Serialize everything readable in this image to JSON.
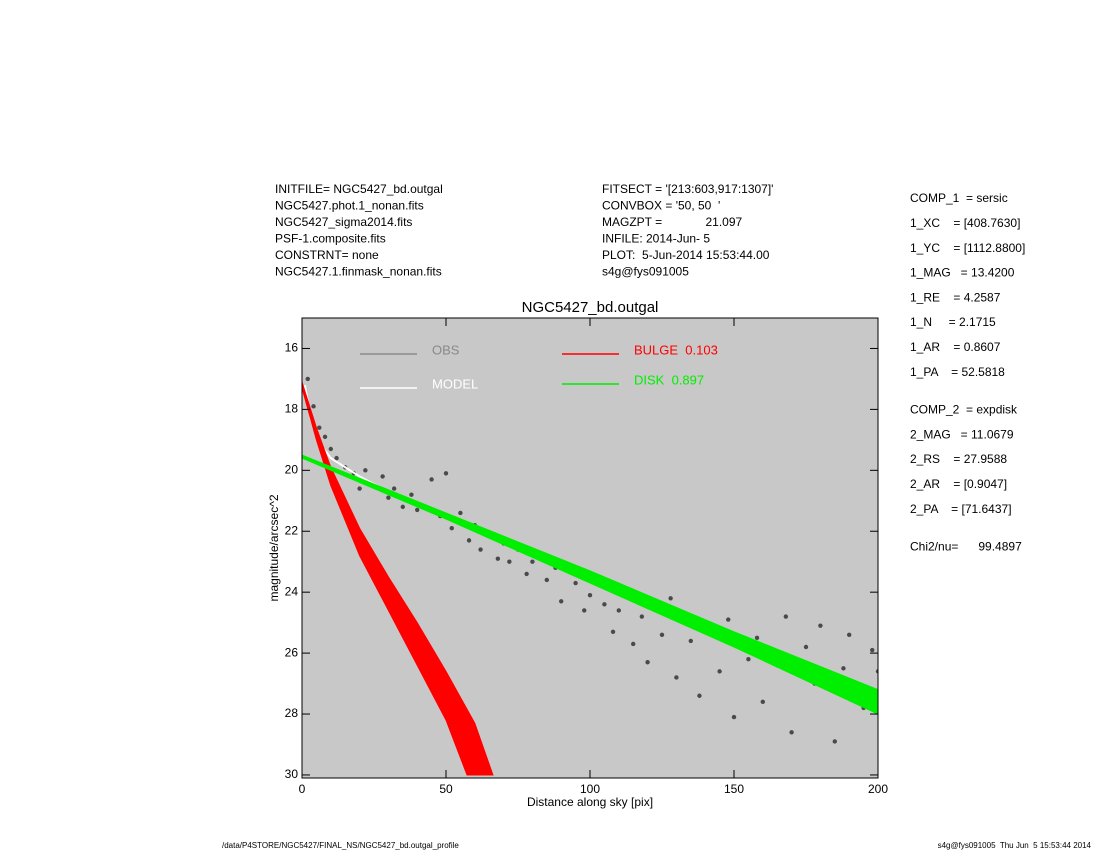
{
  "header": {
    "left": [
      "INITFILE= NGC5427_bd.outgal",
      "NGC5427.phot.1_nonan.fits",
      "NGC5427_sigma2014.fits",
      "PSF-1.composite.fits",
      "CONSTRNT= none",
      "NGC5427.1.finmask_nonan.fits"
    ],
    "middle": [
      "FITSECT = '[213:603,917:1307]'",
      "CONVBOX = '50, 50  '",
      "MAGZPT =             21.097",
      "INFILE: 2014-Jun- 5",
      "PLOT:  5-Jun-2014 15:53:44.00",
      "s4g@fys091005"
    ],
    "right": [
      "COMP_1  = sersic",
      "1_XC    = [408.7630]",
      "1_YC    = [1112.8800]",
      "1_MAG   = 13.4200",
      "1_RE    = 4.2587",
      "1_N     = 2.1715",
      "1_AR    = 0.8607",
      "1_PA    = 52.5818",
      "COMP_2  = expdisk",
      "2_MAG   = 11.0679",
      "2_RS    = 27.9588",
      "2_AR    = [0.9047]",
      "2_PA    = [71.6437]",
      "Chi2/nu=      99.4897"
    ]
  },
  "footer": {
    "left": "/data/P4STORE/NGC5427/FINAL_NS/NGC5427_bd.outgal_profile",
    "right": "s4g@fys091005  Thu Jun  5 15:53:44 2014"
  },
  "chart_data": {
    "type": "scatter",
    "title": "NGC5427_bd.outgal",
    "xlabel": "Distance along sky [pix]",
    "ylabel": "magnitude/arcsec^2",
    "xlim": [
      0,
      200
    ],
    "xticks": [
      0,
      50,
      100,
      150,
      200
    ],
    "ylim": [
      15,
      30.1
    ],
    "yticks": [
      16,
      18,
      20,
      22,
      24,
      26,
      28,
      30
    ],
    "y_inverted": true,
    "background": "#c8c8c8",
    "series": [
      {
        "name": "OBS",
        "color": "#8a8a8a",
        "point_color": "#4a4a4a",
        "style": "points",
        "x": [
          2,
          4,
          6,
          8,
          10,
          12,
          15,
          18,
          20,
          22,
          25,
          28,
          30,
          32,
          35,
          38,
          40,
          45,
          48,
          50,
          52,
          55,
          58,
          60,
          62,
          65,
          68,
          70,
          72,
          75,
          78,
          80,
          85,
          88,
          90,
          95,
          98,
          100,
          105,
          108,
          110,
          115,
          118,
          120,
          125,
          128,
          130,
          135,
          138,
          140,
          145,
          148,
          150,
          155,
          158,
          160,
          165,
          168,
          170,
          175,
          178,
          180,
          185,
          188,
          190,
          195,
          198,
          200
        ],
        "values": [
          17.0,
          17.9,
          18.6,
          18.9,
          19.3,
          19.6,
          19.9,
          20.1,
          20.6,
          20.0,
          20.5,
          20.2,
          20.9,
          20.6,
          21.2,
          20.8,
          21.3,
          20.3,
          21.5,
          20.1,
          21.9,
          21.4,
          22.3,
          21.8,
          22.6,
          22.1,
          22.9,
          22.4,
          23.0,
          22.6,
          23.4,
          23.0,
          23.6,
          23.2,
          24.3,
          23.7,
          24.6,
          24.1,
          24.4,
          25.3,
          24.6,
          25.7,
          24.8,
          26.3,
          25.4,
          24.2,
          26.8,
          25.6,
          27.4,
          25.2,
          26.6,
          24.9,
          28.1,
          26.2,
          25.5,
          27.6,
          26.4,
          24.8,
          28.6,
          25.8,
          27.0,
          25.1,
          28.9,
          26.5,
          25.4,
          27.8,
          25.9,
          26.6
        ]
      },
      {
        "name": "MODEL",
        "color": "#ffffff",
        "style": "line",
        "x": [
          1,
          3,
          6,
          10,
          15,
          20,
          30
        ],
        "values": [
          17.2,
          18.3,
          19.1,
          19.6,
          19.9,
          20.2,
          20.7
        ]
      },
      {
        "name": "BULGE  0.103",
        "color": "#ff0000",
        "style": "band",
        "x": [
          0,
          5,
          10,
          20,
          30,
          40,
          50,
          60,
          66.3
        ],
        "values": [
          17.1,
          18.6,
          19.9,
          21.9,
          23.5,
          25.0,
          26.6,
          28.3,
          30
        ],
        "x_lower": [
          0,
          5,
          10,
          20,
          30,
          40,
          50,
          57.3
        ],
        "values_lower": [
          17.3,
          19.0,
          20.5,
          22.8,
          24.6,
          26.4,
          28.2,
          30
        ]
      },
      {
        "name": "DISK  0.897",
        "color": "#00ee00",
        "style": "band",
        "x": [
          0,
          50,
          100,
          150,
          200
        ],
        "values": [
          19.5,
          21.4,
          23.3,
          25.3,
          27.2
        ],
        "values_lower": [
          19.6,
          21.6,
          23.7,
          25.8,
          28.0
        ]
      }
    ]
  }
}
